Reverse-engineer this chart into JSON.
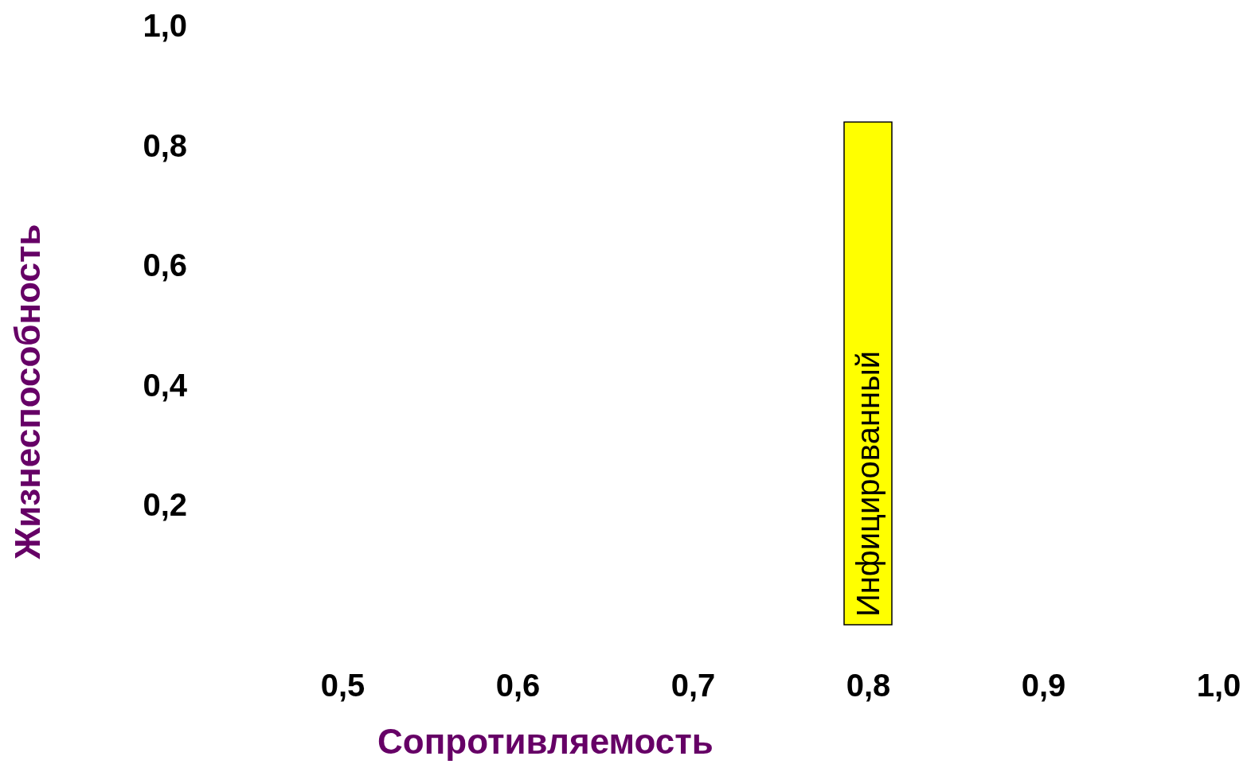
{
  "chart_data": {
    "type": "bar",
    "xlabel": "Сопротивляемость",
    "ylabel": "Жизнеспособность",
    "xlim": [
      0.5,
      1.0
    ],
    "ylim": [
      0,
      1.0
    ],
    "xticks": [
      {
        "value": 0.5,
        "label": "0,5"
      },
      {
        "value": 0.6,
        "label": "0,6"
      },
      {
        "value": 0.7,
        "label": "0,7"
      },
      {
        "value": 0.8,
        "label": "0,8"
      },
      {
        "value": 0.9,
        "label": "0,9"
      },
      {
        "value": 1.0,
        "label": "1,0"
      }
    ],
    "yticks": [
      {
        "value": 0.2,
        "label": "0,2"
      },
      {
        "value": 0.4,
        "label": "0,4"
      },
      {
        "value": 0.6,
        "label": "0,6"
      },
      {
        "value": 0.8,
        "label": "0,8"
      },
      {
        "value": 1.0,
        "label": "1,0"
      }
    ],
    "series": [
      {
        "name": "Инфицированный",
        "color": "#ffff00",
        "x": [
          0.8
        ],
        "values": [
          0.84
        ]
      }
    ]
  }
}
